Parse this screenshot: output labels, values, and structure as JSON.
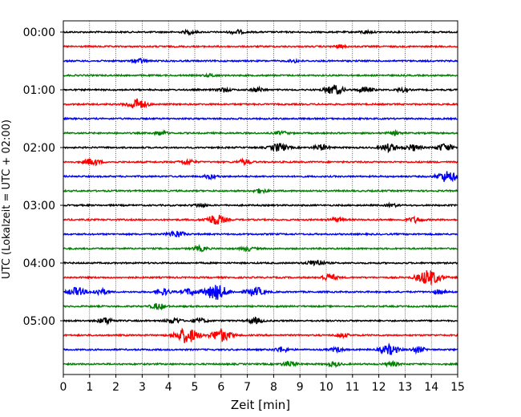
{
  "chart_data": {
    "type": "line",
    "title": "",
    "xlabel": "Zeit  [min]",
    "ylabel": "UTC (Lokalzeit = UTC + 02:00)",
    "xlim": [
      0,
      15
    ],
    "xticks": [
      "0",
      "1",
      "2",
      "3",
      "4",
      "5",
      "6",
      "7",
      "8",
      "9",
      "10",
      "11",
      "12",
      "13",
      "14",
      "15"
    ],
    "grid": "vertical dotted",
    "row_interval_minutes": 15,
    "colors": [
      "#000000",
      "#ff0000",
      "#0000ff",
      "#008000"
    ],
    "y_tick_labels": [
      {
        "row": 0,
        "label": "00:00"
      },
      {
        "row": 4,
        "label": "01:00"
      },
      {
        "row": 8,
        "label": "02:00"
      },
      {
        "row": 12,
        "label": "03:00"
      },
      {
        "row": 16,
        "label": "04:00"
      },
      {
        "row": 20,
        "label": "05:00"
      }
    ],
    "rows": [
      {
        "start": "00:00",
        "events": [
          [
            4.8,
            0.5
          ],
          [
            6.6,
            0.6
          ],
          [
            11.5,
            0.4
          ]
        ]
      },
      {
        "start": "00:15",
        "events": [
          [
            10.5,
            0.4
          ]
        ]
      },
      {
        "start": "00:30",
        "events": [
          [
            2.9,
            0.6
          ],
          [
            8.8,
            0.4
          ]
        ]
      },
      {
        "start": "00:45",
        "events": [
          [
            5.6,
            0.4
          ]
        ]
      },
      {
        "start": "01:00",
        "events": [
          [
            6.1,
            0.6
          ],
          [
            7.4,
            0.6
          ],
          [
            10.3,
            1.4
          ],
          [
            11.5,
            0.8
          ],
          [
            12.9,
            0.5
          ]
        ]
      },
      {
        "start": "01:15",
        "events": [
          [
            2.8,
            1.6
          ]
        ]
      },
      {
        "start": "01:30",
        "events": []
      },
      {
        "start": "01:45",
        "events": [
          [
            3.7,
            0.6
          ],
          [
            8.3,
            0.5
          ],
          [
            12.6,
            0.5
          ]
        ]
      },
      {
        "start": "02:00",
        "events": [
          [
            8.2,
            1.2
          ],
          [
            9.8,
            0.8
          ],
          [
            12.4,
            1.1
          ],
          [
            13.3,
            0.9
          ],
          [
            14.5,
            1.1
          ]
        ]
      },
      {
        "start": "02:15",
        "events": [
          [
            1.1,
            1.0
          ],
          [
            4.7,
            0.8
          ],
          [
            6.9,
            0.7
          ]
        ]
      },
      {
        "start": "02:30",
        "events": [
          [
            5.6,
            0.6
          ],
          [
            14.6,
            1.6
          ]
        ]
      },
      {
        "start": "02:45",
        "events": [
          [
            7.5,
            0.6
          ]
        ]
      },
      {
        "start": "03:00",
        "events": [
          [
            5.2,
            0.5
          ],
          [
            12.5,
            0.4
          ]
        ]
      },
      {
        "start": "03:15",
        "events": [
          [
            5.8,
            1.5
          ],
          [
            10.4,
            0.6
          ],
          [
            13.4,
            0.8
          ]
        ]
      },
      {
        "start": "03:30",
        "events": [
          [
            4.3,
            1.0
          ]
        ]
      },
      {
        "start": "03:45",
        "events": [
          [
            5.2,
            0.7
          ],
          [
            7.0,
            0.6
          ]
        ]
      },
      {
        "start": "04:00",
        "events": [
          [
            9.6,
            1.0
          ]
        ]
      },
      {
        "start": "04:15",
        "events": [
          [
            10.1,
            1.0
          ],
          [
            13.9,
            2.2
          ]
        ]
      },
      {
        "start": "04:30",
        "events": [
          [
            0.5,
            1.2
          ],
          [
            1.4,
            0.9
          ],
          [
            3.8,
            0.9
          ],
          [
            4.8,
            0.9
          ],
          [
            5.8,
            2.2
          ],
          [
            7.3,
            1.3
          ],
          [
            14.3,
            0.6
          ]
        ]
      },
      {
        "start": "04:45",
        "events": [
          [
            3.6,
            0.8
          ]
        ]
      },
      {
        "start": "05:00",
        "events": [
          [
            1.6,
            0.9
          ],
          [
            4.2,
            0.8
          ],
          [
            5.2,
            0.7
          ],
          [
            7.3,
            0.8
          ]
        ]
      },
      {
        "start": "05:15",
        "events": [
          [
            4.7,
            2.2
          ],
          [
            6.0,
            1.8
          ],
          [
            10.6,
            0.6
          ]
        ]
      },
      {
        "start": "05:30",
        "events": [
          [
            8.3,
            0.7
          ],
          [
            10.4,
            0.6
          ],
          [
            12.4,
            1.4
          ],
          [
            13.5,
            0.8
          ]
        ]
      },
      {
        "start": "05:45",
        "events": [
          [
            8.6,
            0.8
          ],
          [
            10.3,
            0.6
          ],
          [
            12.5,
            0.6
          ]
        ]
      }
    ]
  }
}
